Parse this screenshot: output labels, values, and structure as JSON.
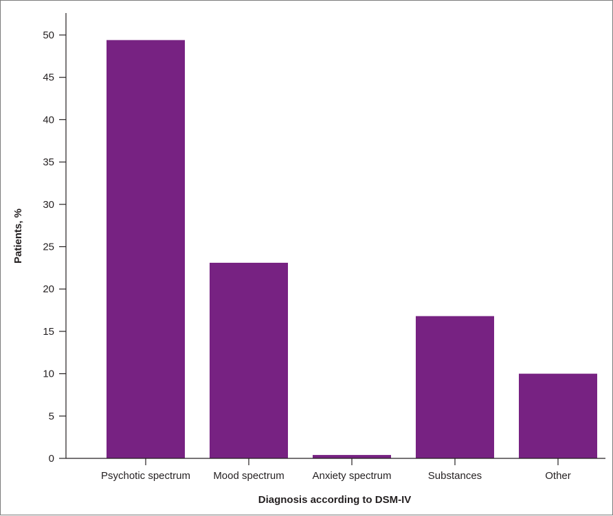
{
  "chart_data": {
    "type": "bar",
    "categories": [
      "Psychotic spectrum",
      "Mood spectrum",
      "Anxiety spectrum",
      "Substances",
      "Other"
    ],
    "values": [
      49.4,
      23.1,
      0.4,
      16.8,
      10.0
    ],
    "title": "",
    "xlabel": "Diagnosis according to DSM-IV",
    "ylabel": "Patients, %",
    "ylim": [
      0,
      50
    ],
    "yticks": [
      0,
      5,
      10,
      15,
      20,
      25,
      30,
      35,
      40,
      45,
      50
    ],
    "grid": false,
    "legend": "none",
    "bar_color": "#772282"
  }
}
